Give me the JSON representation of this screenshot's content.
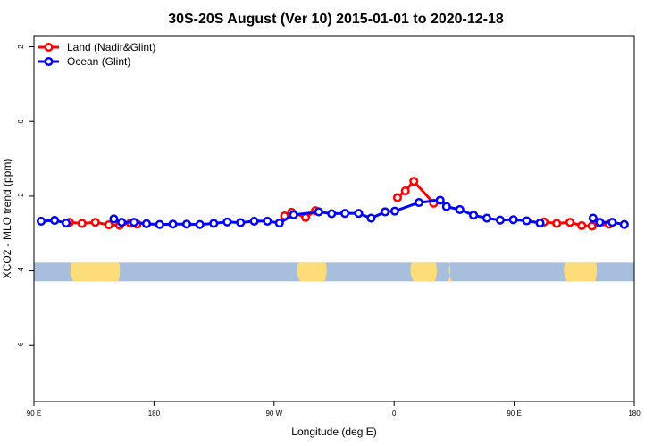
{
  "chart_data": {
    "type": "line",
    "title": "30S-20S August (Ver 10)   2015-01-01 to 2020-12-18",
    "xlabel": "Longitude (deg E)",
    "ylabel": "XCO2 - MLO trend (ppm)",
    "xlim": [
      90,
      450
    ],
    "ylim": [
      -7.5,
      2.3
    ],
    "x_ticks": [
      {
        "value": 90,
        "label": "90 E"
      },
      {
        "value": 162,
        "label": "180"
      },
      {
        "value": 234,
        "label": "90 W"
      },
      {
        "value": 306,
        "label": "0"
      },
      {
        "value": 378,
        "label": "90 E"
      },
      {
        "value": 450,
        "label": "180"
      }
    ],
    "y_ticks": [
      {
        "value": 2,
        "label": "2"
      },
      {
        "value": 0,
        "label": "0"
      },
      {
        "value": -2,
        "label": "-2"
      },
      {
        "value": -4,
        "label": "-4"
      },
      {
        "value": -6,
        "label": "-6"
      }
    ],
    "legend_position": "top-left",
    "series": [
      {
        "name": "Land (Nadir&Glint)",
        "color": "#ff0000",
        "points": [
          [
            111.3,
            -2.7
          ],
          [
            118.8,
            -2.73
          ],
          [
            126.8,
            -2.7
          ],
          [
            134.9,
            -2.77
          ],
          [
            141.4,
            -2.78
          ],
          [
            147.9,
            -2.72
          ],
          [
            151.9,
            -2.75
          ],
          [
            240.3,
            -2.53
          ],
          [
            244.5,
            -2.43
          ],
          [
            252.9,
            -2.57
          ],
          [
            258.8,
            -2.39
          ],
          [
            308.0,
            -2.04
          ],
          [
            312.7,
            -1.86
          ],
          [
            317.8,
            -1.6
          ],
          [
            329.7,
            -2.19
          ],
          [
            395.9,
            -2.69
          ],
          [
            403.5,
            -2.73
          ],
          [
            411.5,
            -2.7
          ],
          [
            418.5,
            -2.79
          ],
          [
            424.7,
            -2.8
          ],
          [
            435.0,
            -2.75
          ]
        ]
      },
      {
        "name": "Ocean (Glint)",
        "color": "#0000ff",
        "points": [
          [
            94.3,
            -2.67
          ],
          [
            102.4,
            -2.65
          ],
          [
            109.3,
            -2.72
          ],
          [
            137.9,
            -2.61
          ],
          [
            142.6,
            -2.7
          ],
          [
            150.0,
            -2.7
          ],
          [
            157.5,
            -2.74
          ],
          [
            165.4,
            -2.76
          ],
          [
            173.3,
            -2.75
          ],
          [
            181.6,
            -2.75
          ],
          [
            189.5,
            -2.76
          ],
          [
            197.8,
            -2.73
          ],
          [
            205.9,
            -2.69
          ],
          [
            213.9,
            -2.71
          ],
          [
            222.1,
            -2.67
          ],
          [
            230.0,
            -2.67
          ],
          [
            237.2,
            -2.72
          ],
          [
            245.7,
            -2.5
          ],
          [
            260.8,
            -2.42
          ],
          [
            268.5,
            -2.47
          ],
          [
            276.5,
            -2.46
          ],
          [
            284.7,
            -2.46
          ],
          [
            292.2,
            -2.59
          ],
          [
            300.6,
            -2.42
          ],
          [
            306.4,
            -2.4
          ],
          [
            320.9,
            -2.17
          ],
          [
            333.6,
            -2.11
          ],
          [
            337.4,
            -2.28
          ],
          [
            345.4,
            -2.36
          ],
          [
            353.6,
            -2.51
          ],
          [
            361.6,
            -2.59
          ],
          [
            369.6,
            -2.64
          ],
          [
            377.5,
            -2.63
          ],
          [
            385.5,
            -2.66
          ],
          [
            393.5,
            -2.72
          ],
          [
            425.3,
            -2.59
          ],
          [
            429.3,
            -2.7
          ],
          [
            436.8,
            -2.7
          ],
          [
            444.0,
            -2.76
          ]
        ]
      }
    ],
    "map_band": {
      "ocean_color": "#a7bedd",
      "land_color": "#fedc7a",
      "land_ranges": [
        [
          111,
          142
        ],
        [
          247,
          266
        ],
        [
          315,
          332
        ],
        [
          338,
          340
        ],
        [
          407,
          428
        ]
      ]
    }
  }
}
